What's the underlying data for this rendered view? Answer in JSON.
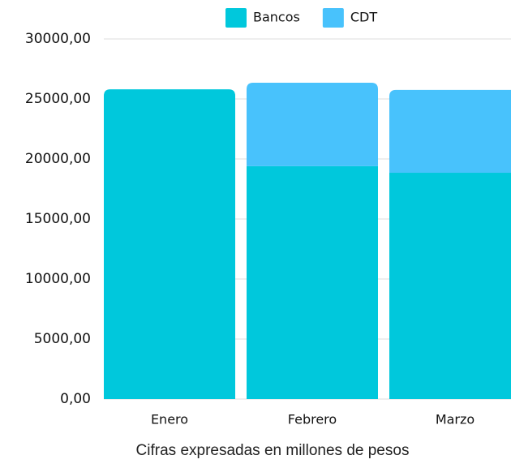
{
  "chart_data": {
    "type": "stacked_bar",
    "categories": [
      "Enero",
      "Febrero",
      "Marzo"
    ],
    "series": [
      {
        "name": "Bancos",
        "color": "#00c8dc",
        "values": [
          25800,
          19400,
          18850
        ]
      },
      {
        "name": "CDT",
        "color": "#48c2fc",
        "values": [
          0,
          6950,
          6900
        ]
      }
    ],
    "ylim": [
      0,
      30000
    ],
    "yticks": [
      {
        "value": 0,
        "label": "0,00"
      },
      {
        "value": 5000,
        "label": "5000,00"
      },
      {
        "value": 10000,
        "label": "10000,00"
      },
      {
        "value": 15000,
        "label": "15000,00"
      },
      {
        "value": 20000,
        "label": "20000,00"
      },
      {
        "value": 25000,
        "label": "25000,00"
      },
      {
        "value": 30000,
        "label": "30000,00"
      }
    ],
    "grid": true,
    "legend": "top",
    "x_label": "Cifras expresadas en millones de pesos"
  }
}
